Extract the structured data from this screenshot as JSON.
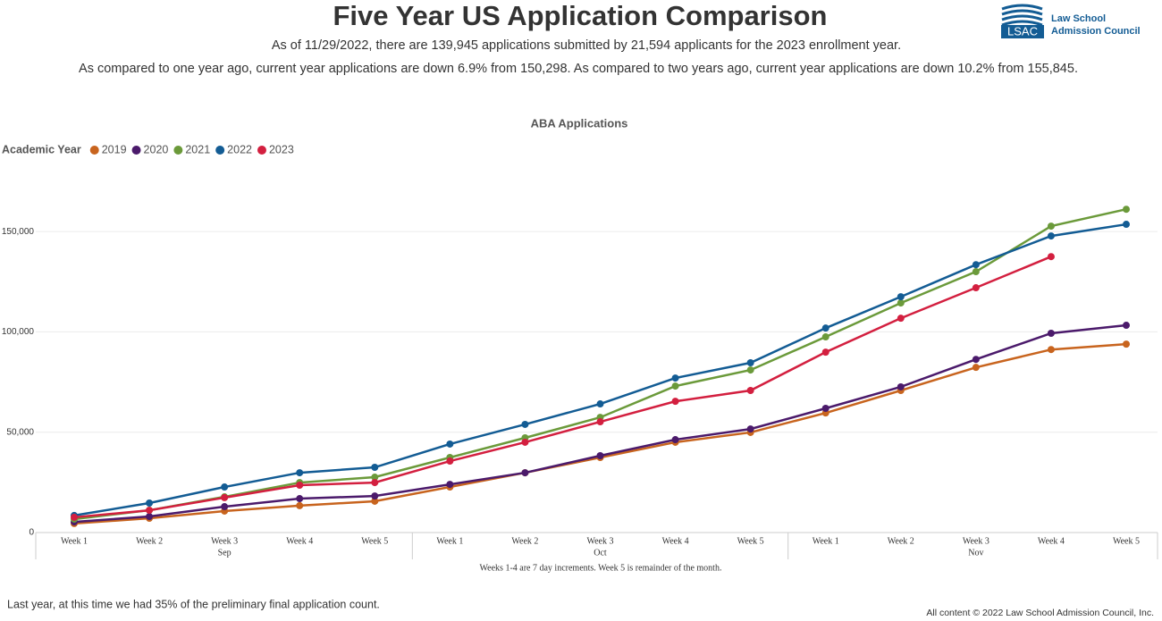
{
  "header": {
    "title": "Five Year US Application Comparison",
    "subtitle": "As of 11/29/2022, there are 139,945 applications submitted by 21,594 applicants for the 2023 enrollment year.",
    "comparison": "As compared to one year ago, current year applications are down 6.9% from 150,298. As compared to two years ago, current year applications are down 10.2% from 155,845."
  },
  "logo": {
    "abbr": "LSAC",
    "line1": "Law School",
    "line2": "Admission Council"
  },
  "chart_data": {
    "type": "line",
    "title": "ABA Applications",
    "legend_title": "Academic Year",
    "categories": [
      "Week 1",
      "Week 2",
      "Week 3",
      "Week 4",
      "Week 5",
      "Week 1",
      "Week 2",
      "Week 3",
      "Week 4",
      "Week 5",
      "Week 1",
      "Week 2",
      "Week 3",
      "Week 4",
      "Week 5"
    ],
    "groups": [
      "Sep",
      "Oct",
      "Nov"
    ],
    "note": "Weeks 1-4 are 7 day increments. Week 5 is remainder of the month.",
    "ylim": [
      0,
      175000
    ],
    "yticks": [
      0,
      {
        "value": 50000,
        "label": "50,000"
      },
      {
        "value": 100000,
        "label": "100,000"
      },
      {
        "value": 150000,
        "label": "150,000"
      }
    ],
    "grid": true,
    "series": [
      {
        "name": "2019",
        "color": "#c8641e",
        "values": [
          4500,
          7100,
          10700,
          13400,
          15600,
          22700,
          29800,
          37400,
          45000,
          49900,
          59600,
          70800,
          82300,
          91200,
          93900
        ]
      },
      {
        "name": "2020",
        "color": "#4b1a6b",
        "values": [
          5300,
          8000,
          12900,
          16900,
          18200,
          24000,
          29800,
          38300,
          46300,
          51600,
          61900,
          72600,
          86300,
          99300,
          103300
        ]
      },
      {
        "name": "2021",
        "color": "#6b9a3a",
        "values": [
          6700,
          11100,
          17800,
          24900,
          27600,
          37400,
          47200,
          57400,
          73000,
          81000,
          97500,
          114400,
          130000,
          152700,
          161100
        ]
      },
      {
        "name": "2022",
        "color": "#135c94",
        "values": [
          8500,
          14700,
          22700,
          29800,
          32500,
          44100,
          53900,
          64100,
          77000,
          84600,
          101900,
          117500,
          133500,
          147800,
          153600
        ]
      },
      {
        "name": "2023",
        "color": "#d31f3f",
        "values": [
          7600,
          11100,
          17400,
          23600,
          24900,
          35600,
          45000,
          55200,
          65400,
          70800,
          89900,
          106800,
          122000,
          137500,
          null
        ]
      }
    ]
  },
  "footer": {
    "note": "Last year, at this time we had 35% of the preliminary final application count.",
    "copyright": "All content © 2022 Law School Admission Council, Inc."
  }
}
